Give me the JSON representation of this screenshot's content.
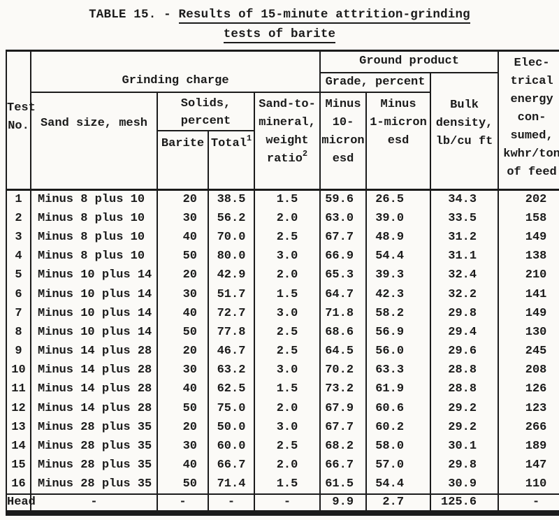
{
  "page": {
    "background_color": "#fbfaf7",
    "ink_color": "#1b1b1b"
  },
  "title": {
    "prefix": "TABLE 15. - ",
    "line1": "Results of 15-minute attrition-grinding",
    "line2": "tests of barite"
  },
  "table": {
    "header": {
      "test_no": "Test\nNo.",
      "grinding_charge": "Grinding charge",
      "sand_size": "Sand size, mesh",
      "solids": "Solids,\npercent",
      "barite": "Barite",
      "total_label": "Total",
      "total_sup": "1",
      "sand_to_mineral_lines": "Sand-to-\nmineral,\nweight",
      "sand_to_mineral_ratio": "ratio",
      "sand_to_mineral_sup": "2",
      "ground_product": "Ground product",
      "grade_percent": "Grade, percent",
      "minus_10_micron": "Minus\n10-\nmicron\nesd",
      "minus_1_micron": "Minus\n1-micron\nesd",
      "bulk_density": "Bulk\ndensity,\nlb/cu ft",
      "electrical": "Elec-\ntrical\nenergy\ncon-\nsumed,\nkwhr/ton\nof feed"
    },
    "rows": [
      [
        "1",
        "Minus 8 plus 10",
        "20",
        "38.5",
        "1.5",
        "59.6",
        "26.5",
        "34.3",
        "202"
      ],
      [
        "2",
        "Minus 8 plus 10",
        "30",
        "56.2",
        "2.0",
        "63.0",
        "39.0",
        "33.5",
        "158"
      ],
      [
        "3",
        "Minus 8 plus 10",
        "40",
        "70.0",
        "2.5",
        "67.7",
        "48.9",
        "31.2",
        "149"
      ],
      [
        "4",
        "Minus 8 plus 10",
        "50",
        "80.0",
        "3.0",
        "66.9",
        "54.4",
        "31.1",
        "138"
      ],
      [
        "5",
        "Minus 10 plus 14",
        "20",
        "42.9",
        "2.0",
        "65.3",
        "39.3",
        "32.4",
        "210"
      ],
      [
        "6",
        "Minus 10 plus 14",
        "30",
        "51.7",
        "1.5",
        "64.7",
        "42.3",
        "32.2",
        "141"
      ],
      [
        "7",
        "Minus 10 plus 14",
        "40",
        "72.7",
        "3.0",
        "71.8",
        "58.2",
        "29.8",
        "149"
      ],
      [
        "8",
        "Minus 10 plus 14",
        "50",
        "77.8",
        "2.5",
        "68.6",
        "56.9",
        "29.4",
        "130"
      ],
      [
        "9",
        "Minus 14 plus 28",
        "20",
        "46.7",
        "2.5",
        "64.5",
        "56.0",
        "29.6",
        "245"
      ],
      [
        "10",
        "Minus 14 plus 28",
        "30",
        "63.2",
        "3.0",
        "70.2",
        "63.3",
        "28.8",
        "208"
      ],
      [
        "11",
        "Minus 14 plus 28",
        "40",
        "62.5",
        "1.5",
        "73.2",
        "61.9",
        "28.8",
        "126"
      ],
      [
        "12",
        "Minus 14 plus 28",
        "50",
        "75.0",
        "2.0",
        "67.9",
        "60.6",
        "29.2",
        "123"
      ],
      [
        "13",
        "Minus 28 plus 35",
        "20",
        "50.0",
        "3.0",
        "67.7",
        "60.2",
        "29.2",
        "266"
      ],
      [
        "14",
        "Minus 28 plus 35",
        "30",
        "60.0",
        "2.5",
        "68.2",
        "58.0",
        "30.1",
        "189"
      ],
      [
        "15",
        "Minus 28 plus 35",
        "40",
        "66.7",
        "2.0",
        "66.7",
        "57.0",
        "29.8",
        "147"
      ],
      [
        "16",
        "Minus 28 plus 35",
        "50",
        "71.4",
        "1.5",
        "61.5",
        "54.4",
        "30.9",
        "110"
      ],
      [
        "Head",
        "-",
        "-",
        "-",
        "-",
        "9.9",
        "2.7",
        "125.6",
        "-"
      ]
    ]
  }
}
